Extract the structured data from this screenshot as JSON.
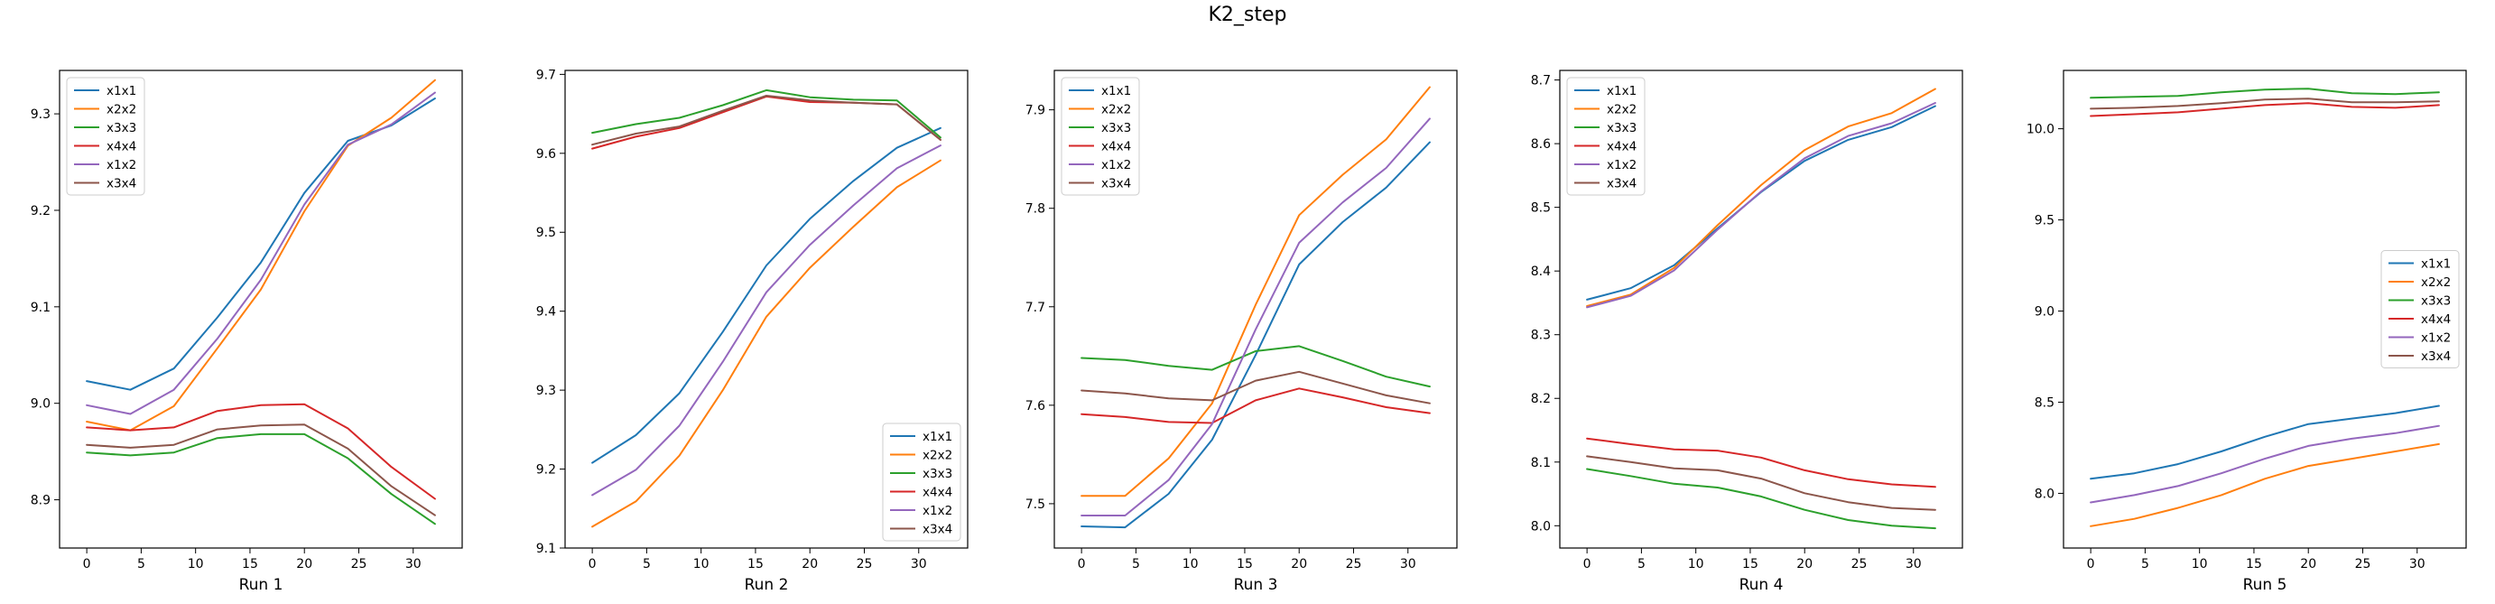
{
  "figure_title": "K2_step",
  "colors": {
    "x1x1": "#1f77b4",
    "x2x2": "#ff7f0e",
    "x3x3": "#2ca02c",
    "x4x4": "#d62728",
    "x1x2": "#9467bd",
    "x3x4": "#8c564b"
  },
  "chart_data": [
    {
      "type": "line",
      "title": "Run 1",
      "xlabel": "Run 1",
      "ylabel": "",
      "x": [
        0,
        4,
        8,
        12,
        16,
        20,
        24,
        28,
        32
      ],
      "xticks": [
        0,
        5,
        10,
        15,
        20,
        25,
        30
      ],
      "xlim": [
        -2.5,
        34.5
      ],
      "ylim": [
        8.85,
        9.345
      ],
      "yticks": [
        8.9,
        9.0,
        9.1,
        9.2,
        9.3
      ],
      "legend": "upper left",
      "grid": false,
      "series": [
        {
          "name": "x1x1",
          "values": [
            9.023,
            9.014,
            9.036,
            9.089,
            9.146,
            9.218,
            9.272,
            9.288,
            9.316
          ]
        },
        {
          "name": "x2x2",
          "values": [
            8.981,
            8.972,
            8.997,
            9.057,
            9.118,
            9.199,
            9.267,
            9.296,
            9.335
          ]
        },
        {
          "name": "x3x3",
          "values": [
            8.949,
            8.946,
            8.949,
            8.964,
            8.968,
            8.968,
            8.943,
            8.906,
            8.875
          ]
        },
        {
          "name": "x4x4",
          "values": [
            8.975,
            8.972,
            8.975,
            8.992,
            8.998,
            8.999,
            8.974,
            8.934,
            8.901
          ]
        },
        {
          "name": "x1x2",
          "values": [
            8.998,
            8.989,
            9.014,
            9.067,
            9.128,
            9.206,
            9.268,
            9.289,
            9.322
          ]
        },
        {
          "name": "x3x4",
          "values": [
            8.957,
            8.954,
            8.957,
            8.973,
            8.977,
            8.978,
            8.953,
            8.914,
            8.884
          ]
        }
      ]
    },
    {
      "type": "line",
      "title": "Run 2",
      "xlabel": "Run 2",
      "ylabel": "",
      "x": [
        0,
        4,
        8,
        12,
        16,
        20,
        24,
        28,
        32
      ],
      "xticks": [
        0,
        5,
        10,
        15,
        20,
        25,
        30
      ],
      "xlim": [
        -2.5,
        34.5
      ],
      "ylim": [
        9.1,
        9.705
      ],
      "yticks": [
        9.1,
        9.2,
        9.3,
        9.4,
        9.5,
        9.6,
        9.7
      ],
      "legend": "lower right",
      "grid": false,
      "series": [
        {
          "name": "x1x1",
          "values": [
            9.208,
            9.243,
            9.296,
            9.374,
            9.458,
            9.517,
            9.565,
            9.607,
            9.632
          ]
        },
        {
          "name": "x2x2",
          "values": [
            9.127,
            9.159,
            9.217,
            9.3,
            9.393,
            9.455,
            9.507,
            9.557,
            9.591
          ]
        },
        {
          "name": "x3x3",
          "values": [
            9.626,
            9.637,
            9.645,
            9.661,
            9.68,
            9.671,
            9.668,
            9.667,
            9.62
          ]
        },
        {
          "name": "x4x4",
          "values": [
            9.606,
            9.621,
            9.632,
            9.652,
            9.672,
            9.665,
            9.664,
            9.662,
            9.617
          ]
        },
        {
          "name": "x1x2",
          "values": [
            9.167,
            9.199,
            9.255,
            9.336,
            9.424,
            9.484,
            9.534,
            9.581,
            9.61
          ]
        },
        {
          "name": "x3x4",
          "values": [
            9.611,
            9.625,
            9.634,
            9.654,
            9.673,
            9.667,
            9.664,
            9.662,
            9.617
          ]
        }
      ]
    },
    {
      "type": "line",
      "title": "Run 3",
      "xlabel": "Run 3",
      "ylabel": "",
      "x": [
        0,
        4,
        8,
        12,
        16,
        20,
        24,
        28,
        32
      ],
      "xticks": [
        0,
        5,
        10,
        15,
        20,
        25,
        30
      ],
      "xlim": [
        -2.5,
        34.5
      ],
      "ylim": [
        7.455,
        7.94
      ],
      "yticks": [
        7.5,
        7.6,
        7.7,
        7.8,
        7.9
      ],
      "legend": "upper left",
      "grid": false,
      "series": [
        {
          "name": "x1x1",
          "values": [
            7.477,
            7.476,
            7.51,
            7.565,
            7.651,
            7.743,
            7.786,
            7.821,
            7.867
          ]
        },
        {
          "name": "x2x2",
          "values": [
            7.508,
            7.508,
            7.546,
            7.602,
            7.702,
            7.793,
            7.834,
            7.87,
            7.923
          ]
        },
        {
          "name": "x3x3",
          "values": [
            7.648,
            7.646,
            7.64,
            7.636,
            7.655,
            7.66,
            7.645,
            7.629,
            7.619
          ]
        },
        {
          "name": "x4x4",
          "values": [
            7.591,
            7.588,
            7.583,
            7.582,
            7.605,
            7.617,
            7.608,
            7.598,
            7.592
          ]
        },
        {
          "name": "x1x2",
          "values": [
            7.488,
            7.488,
            7.524,
            7.581,
            7.677,
            7.765,
            7.806,
            7.841,
            7.891
          ]
        },
        {
          "name": "x3x4",
          "values": [
            7.615,
            7.612,
            7.607,
            7.605,
            7.625,
            7.634,
            7.622,
            7.61,
            7.602
          ]
        }
      ]
    },
    {
      "type": "line",
      "title": "Run 4",
      "xlabel": "Run 4",
      "ylabel": "",
      "x": [
        0,
        4,
        8,
        12,
        16,
        20,
        24,
        28,
        32
      ],
      "xticks": [
        0,
        5,
        10,
        15,
        20,
        25,
        30
      ],
      "xlim": [
        -2.5,
        34.5
      ],
      "ylim": [
        7.965,
        8.715
      ],
      "yticks": [
        8.0,
        8.1,
        8.2,
        8.3,
        8.4,
        8.5,
        8.6,
        8.7
      ],
      "legend": "upper left",
      "grid": false,
      "series": [
        {
          "name": "x1x1",
          "values": [
            8.355,
            8.373,
            8.409,
            8.467,
            8.524,
            8.573,
            8.606,
            8.626,
            8.659
          ]
        },
        {
          "name": "x2x2",
          "values": [
            8.345,
            8.363,
            8.405,
            8.472,
            8.535,
            8.59,
            8.627,
            8.648,
            8.686
          ]
        },
        {
          "name": "x3x3",
          "values": [
            8.089,
            8.078,
            8.066,
            8.06,
            8.046,
            8.025,
            8.009,
            8.0,
            7.996
          ]
        },
        {
          "name": "x4x4",
          "values": [
            8.137,
            8.128,
            8.12,
            8.118,
            8.107,
            8.087,
            8.073,
            8.065,
            8.061
          ]
        },
        {
          "name": "x1x2",
          "values": [
            8.343,
            8.361,
            8.401,
            8.465,
            8.525,
            8.577,
            8.612,
            8.632,
            8.664
          ]
        },
        {
          "name": "x3x4",
          "values": [
            8.109,
            8.1,
            8.09,
            8.087,
            8.074,
            8.051,
            8.037,
            8.028,
            8.025
          ]
        }
      ]
    },
    {
      "type": "line",
      "title": "Run 5",
      "xlabel": "Run 5",
      "ylabel": "",
      "x": [
        0,
        4,
        8,
        12,
        16,
        20,
        24,
        28,
        32
      ],
      "xticks": [
        0,
        5,
        10,
        15,
        20,
        25,
        30
      ],
      "xlim": [
        -2.5,
        34.5
      ],
      "ylim": [
        7.7,
        10.32
      ],
      "yticks": [
        8.0,
        8.5,
        9.0,
        9.5,
        10.0
      ],
      "legend": "center right",
      "grid": false,
      "series": [
        {
          "name": "x1x1",
          "values": [
            8.08,
            8.11,
            8.16,
            8.23,
            8.31,
            8.38,
            8.41,
            8.44,
            8.48
          ]
        },
        {
          "name": "x2x2",
          "values": [
            7.82,
            7.86,
            7.92,
            7.99,
            8.08,
            8.15,
            8.19,
            8.23,
            8.27
          ]
        },
        {
          "name": "x3x3",
          "values": [
            10.17,
            10.175,
            10.18,
            10.2,
            10.215,
            10.22,
            10.195,
            10.19,
            10.2
          ]
        },
        {
          "name": "x4x4",
          "values": [
            10.07,
            10.08,
            10.09,
            10.11,
            10.13,
            10.14,
            10.12,
            10.115,
            10.13
          ]
        },
        {
          "name": "x1x2",
          "values": [
            7.95,
            7.99,
            8.04,
            8.11,
            8.19,
            8.26,
            8.3,
            8.33,
            8.37
          ]
        },
        {
          "name": "x3x4",
          "values": [
            10.11,
            10.115,
            10.125,
            10.14,
            10.16,
            10.165,
            10.145,
            10.145,
            10.15
          ]
        }
      ]
    }
  ]
}
